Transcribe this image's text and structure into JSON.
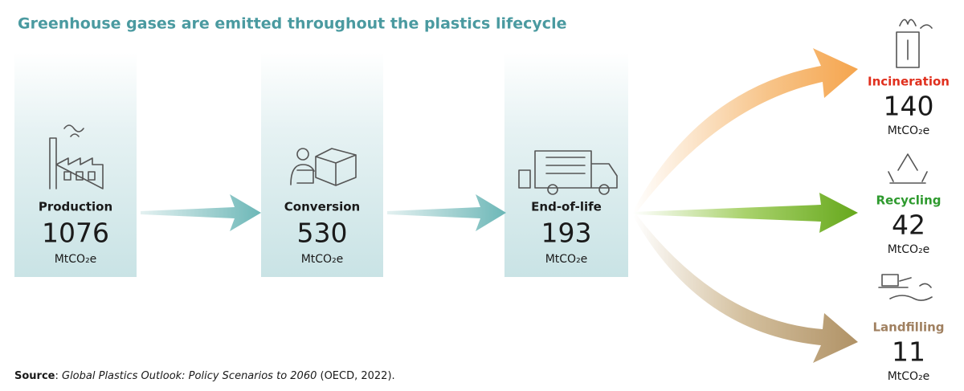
{
  "title": "Greenhouse gases are emitted throughout the plastics lifecycle",
  "stages": [
    {
      "label": "Production",
      "value": 1076,
      "unit": "MtCO₂e"
    },
    {
      "label": "Conversion",
      "value": 530,
      "unit": "MtCO₂e"
    },
    {
      "label": "End-of-life",
      "value": 193,
      "unit": "MtCO₂e"
    }
  ],
  "outcomes": [
    {
      "label": "Incineration",
      "value": 140,
      "unit": "MtCO₂e"
    },
    {
      "label": "Recycling",
      "value": 42,
      "unit": "MtCO₂e"
    },
    {
      "label": "Landfilling",
      "value": 11,
      "unit": "MtCO₂e"
    }
  ],
  "source": [
    "Source",
    ": ",
    "Global Plastics Outlook: Policy Scenarios to 2060",
    " (OECD, 2022)."
  ]
}
